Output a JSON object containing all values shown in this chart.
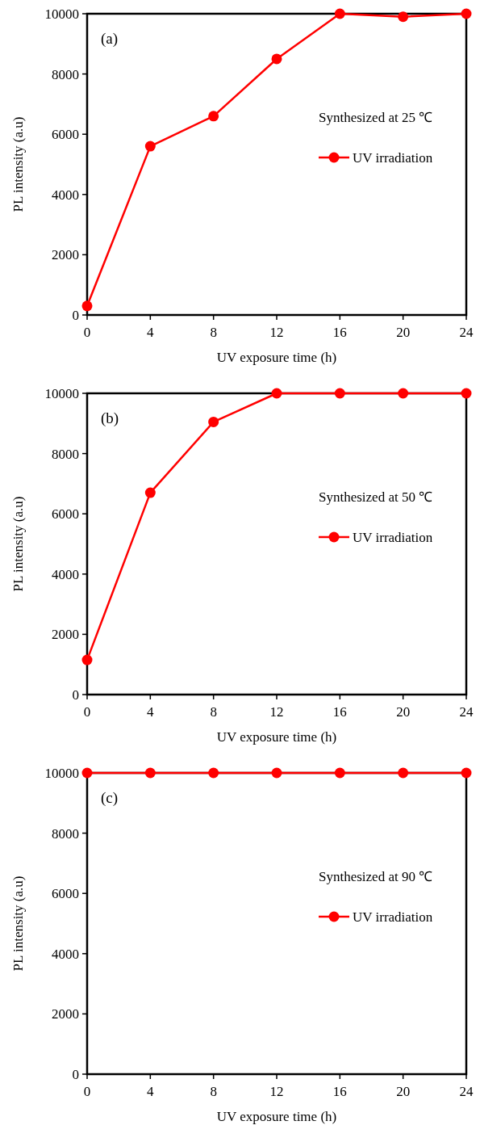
{
  "chart_data": [
    {
      "type": "line",
      "title": "(a)",
      "legend_title": "Synthesized at 25 ℃",
      "xlabel": "UV exposure time (h)",
      "ylabel": "PL intensity (a.u)",
      "x": [
        0,
        4,
        8,
        12,
        16,
        20,
        24
      ],
      "series": [
        {
          "name": "UV irradiation",
          "color": "#ff0000",
          "values": [
            300,
            5600,
            6600,
            8500,
            10000,
            9900,
            10000
          ]
        }
      ],
      "xlim": [
        0,
        24
      ],
      "xticks": [
        0,
        4,
        8,
        12,
        16,
        20,
        24
      ],
      "ylim": [
        0,
        10000
      ],
      "yticks": [
        0,
        2000,
        4000,
        6000,
        8000,
        10000
      ],
      "legend": "right",
      "marker": "circle",
      "line_style": "solid"
    },
    {
      "type": "line",
      "title": "(b)",
      "legend_title": "Synthesized at 50 ℃",
      "xlabel": "UV exposure time (h)",
      "ylabel": "PL intensity (a.u)",
      "x": [
        0,
        4,
        8,
        12,
        16,
        20,
        24
      ],
      "series": [
        {
          "name": "UV irradiation",
          "color": "#ff0000",
          "values": [
            1150,
            6700,
            9050,
            10000,
            10000,
            10000,
            10000
          ]
        }
      ],
      "xlim": [
        0,
        24
      ],
      "xticks": [
        0,
        4,
        8,
        12,
        16,
        20,
        24
      ],
      "ylim": [
        0,
        10000
      ],
      "yticks": [
        0,
        2000,
        4000,
        6000,
        8000,
        10000
      ],
      "legend": "right",
      "marker": "circle",
      "line_style": "solid"
    },
    {
      "type": "line",
      "title": "(c)",
      "legend_title": "Synthesized at 90 ℃",
      "xlabel": "UV exposure time (h)",
      "ylabel": "PL intensity (a.u)",
      "x": [
        0,
        4,
        8,
        12,
        16,
        20,
        24
      ],
      "series": [
        {
          "name": "UV irradiation",
          "color": "#ff0000",
          "values": [
            10000,
            10000,
            10000,
            10000,
            10000,
            10000,
            10000
          ]
        }
      ],
      "xlim": [
        0,
        24
      ],
      "xticks": [
        0,
        4,
        8,
        12,
        16,
        20,
        24
      ],
      "ylim": [
        0,
        10000
      ],
      "yticks": [
        0,
        2000,
        4000,
        6000,
        8000,
        10000
      ],
      "legend": "right",
      "marker": "circle",
      "line_style": "solid"
    }
  ]
}
